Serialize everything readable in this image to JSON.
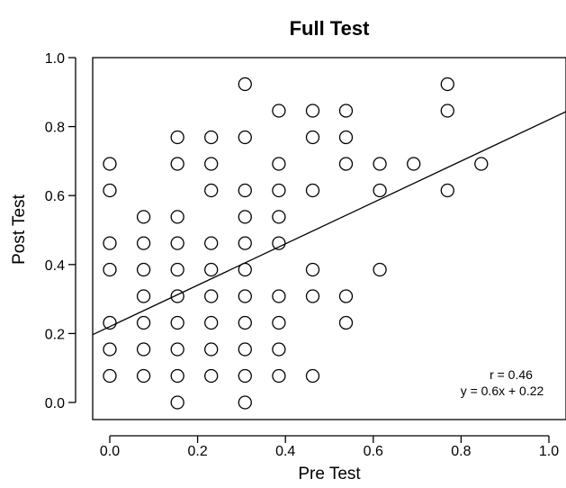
{
  "chart_data": {
    "type": "scatter",
    "title": "Full Test",
    "xlabel": "Pre Test",
    "ylabel": "Post Test",
    "xlim": [
      -0.04,
      1.04
    ],
    "ylim": [
      -0.04,
      1.0
    ],
    "x_ticks": [
      0.0,
      0.2,
      0.4,
      0.6,
      0.8,
      1.0
    ],
    "x_tick_labels": [
      "0.0",
      "0.2",
      "0.4",
      "0.6",
      "0.8",
      "1.0"
    ],
    "y_ticks": [
      0.0,
      0.2,
      0.4,
      0.6,
      0.8,
      1.0
    ],
    "y_tick_labels": [
      "0.0",
      "0.2",
      "0.4",
      "0.6",
      "0.8",
      "1.0"
    ],
    "grid": false,
    "points": [
      [
        0.0,
        0.077
      ],
      [
        0.0,
        0.154
      ],
      [
        0.0,
        0.231
      ],
      [
        0.0,
        0.385
      ],
      [
        0.0,
        0.462
      ],
      [
        0.0,
        0.615
      ],
      [
        0.0,
        0.692
      ],
      [
        0.077,
        0.077
      ],
      [
        0.077,
        0.154
      ],
      [
        0.077,
        0.231
      ],
      [
        0.077,
        0.308
      ],
      [
        0.077,
        0.385
      ],
      [
        0.077,
        0.462
      ],
      [
        0.077,
        0.538
      ],
      [
        0.154,
        0.0
      ],
      [
        0.154,
        0.077
      ],
      [
        0.154,
        0.154
      ],
      [
        0.154,
        0.231
      ],
      [
        0.154,
        0.308
      ],
      [
        0.154,
        0.385
      ],
      [
        0.154,
        0.462
      ],
      [
        0.154,
        0.538
      ],
      [
        0.154,
        0.692
      ],
      [
        0.154,
        0.769
      ],
      [
        0.231,
        0.077
      ],
      [
        0.231,
        0.154
      ],
      [
        0.231,
        0.231
      ],
      [
        0.231,
        0.308
      ],
      [
        0.231,
        0.385
      ],
      [
        0.231,
        0.462
      ],
      [
        0.231,
        0.615
      ],
      [
        0.231,
        0.692
      ],
      [
        0.231,
        0.769
      ],
      [
        0.308,
        0.0
      ],
      [
        0.308,
        0.077
      ],
      [
        0.308,
        0.154
      ],
      [
        0.308,
        0.231
      ],
      [
        0.308,
        0.308
      ],
      [
        0.308,
        0.385
      ],
      [
        0.308,
        0.462
      ],
      [
        0.308,
        0.538
      ],
      [
        0.308,
        0.615
      ],
      [
        0.308,
        0.769
      ],
      [
        0.308,
        0.923
      ],
      [
        0.385,
        0.077
      ],
      [
        0.385,
        0.154
      ],
      [
        0.385,
        0.231
      ],
      [
        0.385,
        0.308
      ],
      [
        0.385,
        0.462
      ],
      [
        0.385,
        0.538
      ],
      [
        0.385,
        0.615
      ],
      [
        0.385,
        0.692
      ],
      [
        0.385,
        0.846
      ],
      [
        0.462,
        0.077
      ],
      [
        0.462,
        0.308
      ],
      [
        0.462,
        0.385
      ],
      [
        0.462,
        0.615
      ],
      [
        0.462,
        0.769
      ],
      [
        0.462,
        0.846
      ],
      [
        0.538,
        0.231
      ],
      [
        0.538,
        0.308
      ],
      [
        0.538,
        0.692
      ],
      [
        0.538,
        0.769
      ],
      [
        0.538,
        0.846
      ],
      [
        0.615,
        0.385
      ],
      [
        0.615,
        0.615
      ],
      [
        0.615,
        0.692
      ],
      [
        0.692,
        0.692
      ],
      [
        0.769,
        0.615
      ],
      [
        0.769,
        0.846
      ],
      [
        0.769,
        0.923
      ],
      [
        0.846,
        0.692
      ]
    ],
    "fit_line": {
      "slope": 0.6,
      "intercept": 0.22
    },
    "annotations": [
      "r = 0.46",
      "y = 0.6x + 0.22"
    ]
  }
}
